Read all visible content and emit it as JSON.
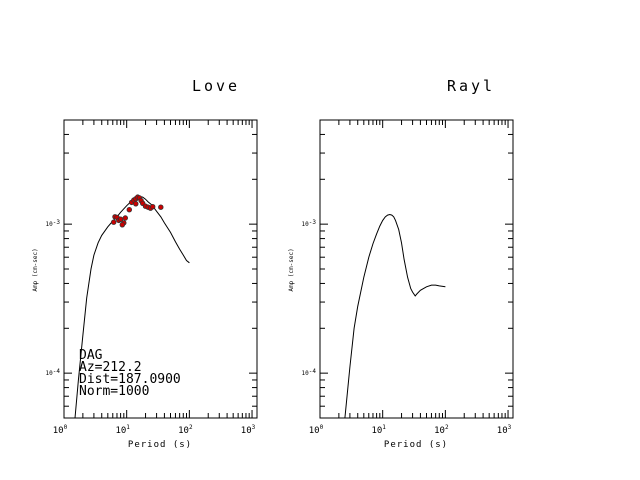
{
  "chart_data": [
    {
      "type": "line",
      "title": "Love",
      "xlabel": "Period (s)",
      "ylabel": "Amp (cm-sec)",
      "x_scale": "log",
      "y_scale": "log",
      "xlim": [
        1,
        1200
      ],
      "ylim": [
        5e-05,
        0.005
      ],
      "x_ticks": [
        {
          "base": "10",
          "exp": "0",
          "value": 1
        },
        {
          "base": "10",
          "exp": "1",
          "value": 10
        },
        {
          "base": "10",
          "exp": "2",
          "value": 100
        },
        {
          "base": "10",
          "exp": "3",
          "value": 1000
        }
      ],
      "y_ticks": [
        {
          "base": "10",
          "exp": "-4",
          "value": 0.0001
        },
        {
          "base": "10",
          "exp": "-3",
          "value": 0.001
        }
      ],
      "series": [
        {
          "kind": "line",
          "color": "#000000",
          "points": [
            [
              1.5,
              5e-05
            ],
            [
              1.7,
              9e-05
            ],
            [
              2,
              0.00018
            ],
            [
              2.3,
              0.00032
            ],
            [
              2.7,
              0.0005
            ],
            [
              3,
              0.00062
            ],
            [
              3.5,
              0.00075
            ],
            [
              4,
              0.00084
            ],
            [
              5,
              0.00096
            ],
            [
              6,
              0.00105
            ],
            [
              7,
              0.00112
            ],
            [
              8,
              0.0012
            ],
            [
              10,
              0.00133
            ],
            [
              12,
              0.00143
            ],
            [
              14,
              0.0015
            ],
            [
              16,
              0.00153
            ],
            [
              18,
              0.00152
            ],
            [
              20,
              0.00147
            ],
            [
              22,
              0.00141
            ],
            [
              25,
              0.00135
            ],
            [
              30,
              0.00122
            ],
            [
              35,
              0.00112
            ],
            [
              40,
              0.00102
            ],
            [
              50,
              0.00088
            ],
            [
              60,
              0.00076
            ],
            [
              70,
              0.00068
            ],
            [
              80,
              0.00062
            ],
            [
              90,
              0.00057
            ],
            [
              100,
              0.00055
            ]
          ]
        },
        {
          "kind": "scatter",
          "color": "#cc0000",
          "points": [
            [
              6.5,
              0.00112
            ],
            [
              7,
              0.00111
            ],
            [
              7.5,
              0.00106
            ],
            [
              8,
              0.00108
            ],
            [
              9,
              0.00102
            ],
            [
              8.5,
              0.00099
            ],
            [
              11,
              0.00125
            ],
            [
              12,
              0.0014
            ],
            [
              13,
              0.00145
            ],
            [
              14,
              0.00148
            ],
            [
              15,
              0.00152
            ],
            [
              16,
              0.0015
            ],
            [
              17,
              0.00144
            ],
            [
              18,
              0.00138
            ],
            [
              20,
              0.00132
            ],
            [
              22,
              0.0013
            ],
            [
              24,
              0.00128
            ],
            [
              26,
              0.00131
            ],
            [
              14,
              0.00137
            ],
            [
              35,
              0.0013
            ],
            [
              6.2,
              0.00103
            ],
            [
              9.5,
              0.0011
            ]
          ]
        }
      ],
      "annotations": [
        "DAG",
        "Az=212.2",
        "Dist=187.0900",
        "Norm=1000"
      ]
    },
    {
      "type": "line",
      "title": "Rayl",
      "xlabel": "Period (s)",
      "ylabel": "Amp (cm-sec)",
      "x_scale": "log",
      "y_scale": "log",
      "xlim": [
        1,
        1200
      ],
      "ylim": [
        5e-05,
        0.005
      ],
      "x_ticks": [
        {
          "base": "10",
          "exp": "0",
          "value": 1
        },
        {
          "base": "10",
          "exp": "1",
          "value": 10
        },
        {
          "base": "10",
          "exp": "2",
          "value": 100
        },
        {
          "base": "10",
          "exp": "3",
          "value": 1000
        }
      ],
      "y_ticks": [
        {
          "base": "10",
          "exp": "-4",
          "value": 0.0001
        },
        {
          "base": "10",
          "exp": "-3",
          "value": 0.001
        }
      ],
      "series": [
        {
          "kind": "line",
          "color": "#000000",
          "points": [
            [
              2.5,
              5e-05
            ],
            [
              3,
              0.00011
            ],
            [
              3.5,
              0.0002
            ],
            [
              4,
              0.00028
            ],
            [
              5,
              0.00044
            ],
            [
              6,
              0.0006
            ],
            [
              7,
              0.00074
            ],
            [
              8,
              0.00086
            ],
            [
              9,
              0.00097
            ],
            [
              10,
              0.00106
            ],
            [
              11,
              0.00112
            ],
            [
              12,
              0.00115
            ],
            [
              13,
              0.00116
            ],
            [
              14,
              0.00115
            ],
            [
              15,
              0.00112
            ],
            [
              16,
              0.00106
            ],
            [
              18,
              0.00092
            ],
            [
              20,
              0.00075
            ],
            [
              22,
              0.00058
            ],
            [
              25,
              0.00044
            ],
            [
              28,
              0.00037
            ],
            [
              30,
              0.00035
            ],
            [
              33,
              0.00033
            ],
            [
              35,
              0.00034
            ],
            [
              40,
              0.00036
            ],
            [
              50,
              0.00038
            ],
            [
              60,
              0.00039
            ],
            [
              70,
              0.00039
            ],
            [
              80,
              0.000385
            ],
            [
              100,
              0.00038
            ]
          ]
        }
      ],
      "annotations": []
    }
  ]
}
